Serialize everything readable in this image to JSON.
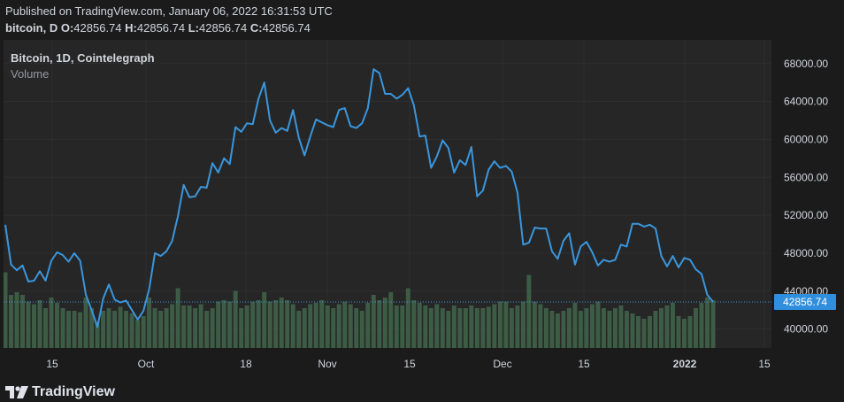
{
  "header": {
    "published": "Published on TradingView.com, January 06, 2022 16:31:53 UTC",
    "symbol": "bitcoin, D",
    "o_label": "O:",
    "o_value": "42856.74",
    "h_label": "H:",
    "h_value": "42856.74",
    "l_label": "L:",
    "l_value": "42856.74",
    "c_label": "C:",
    "c_value": "42856.74"
  },
  "legend": {
    "title": "Bitcoin, 1D, Cointelegraph",
    "volume_label": "Volume"
  },
  "brand": {
    "name": "TradingView"
  },
  "colors": {
    "price_line": "#3a96dd",
    "volume": "#3d5c45",
    "price_badge": "#2f8fde",
    "grid": "#2f2f2f",
    "text": "#d1d4dc"
  },
  "chart_data": {
    "type": "line",
    "x_ticks": [
      "15",
      "Oct",
      "18",
      "Nov",
      "15",
      "Dec",
      "15",
      "2022",
      "15"
    ],
    "y_ticks": [
      "40000.00",
      "44000.00",
      "48000.00",
      "52000.00",
      "56000.00",
      "60000.00",
      "64000.00",
      "68000.00"
    ],
    "ylim": [
      38000,
      70500
    ],
    "last_price": "42856.74",
    "series": [
      {
        "values": [
          51000,
          46800,
          46200,
          46700,
          45000,
          45100,
          46100,
          45100,
          47200,
          48100,
          47800,
          47100,
          48000,
          47200,
          43600,
          42000,
          40200,
          43200,
          44700,
          43100,
          42800,
          43000,
          42000,
          41000,
          41900,
          44200,
          48000,
          47700,
          48200,
          49300,
          51900,
          55200,
          53900,
          54000,
          55000,
          54900,
          57500,
          56500,
          58000,
          57400,
          61300,
          60800,
          61700,
          61600,
          64300,
          66000,
          62000,
          60700,
          61200,
          60900,
          63100,
          60200,
          58300,
          60300,
          62100,
          61800,
          61500,
          61300,
          63100,
          63300,
          61400,
          61200,
          61700,
          63300,
          67400,
          67000,
          64800,
          64800,
          64300,
          64700,
          65400,
          63600,
          60300,
          60400,
          57000,
          58200,
          59900,
          59100,
          56500,
          57800,
          57300,
          59200,
          54000,
          54600,
          56800,
          57700,
          57000,
          57200,
          56600,
          54400,
          48900,
          49100,
          50700,
          50600,
          50600,
          48200,
          47400,
          49300,
          50100,
          46800,
          48700,
          49200,
          48100,
          46700,
          47300,
          47100,
          47300,
          48900,
          48700,
          51100,
          51100,
          50800,
          51000,
          50600,
          47700,
          46600,
          47700,
          46500,
          47500,
          47300,
          46300,
          45800,
          43600,
          42857
        ]
      },
      {
        "name": "Volume",
        "values": [
          57,
          40,
          42,
          40,
          35,
          33,
          36,
          30,
          38,
          34,
          30,
          28,
          28,
          27,
          38,
          30,
          20,
          28,
          30,
          28,
          31,
          28,
          26,
          21,
          24,
          38,
          30,
          28,
          30,
          33,
          45,
          32,
          32,
          30,
          33,
          28,
          30,
          35,
          36,
          35,
          43,
          30,
          32,
          35,
          36,
          42,
          35,
          36,
          38,
          36,
          33,
          28,
          30,
          33,
          34,
          36,
          32,
          30,
          33,
          35,
          33,
          30,
          28,
          34,
          40,
          36,
          38,
          42,
          32,
          32,
          45,
          36,
          34,
          32,
          30,
          33,
          30,
          28,
          32,
          30,
          30,
          32,
          30,
          30,
          31,
          33,
          35,
          35,
          30,
          32,
          35,
          55,
          35,
          33,
          30,
          28,
          26,
          28,
          30,
          34,
          28,
          30,
          33,
          35,
          30,
          28,
          30,
          32,
          28,
          26,
          24,
          22,
          24,
          28,
          30,
          32,
          34,
          24,
          22,
          24,
          30,
          34,
          38,
          36
        ]
      }
    ],
    "grid": true
  }
}
